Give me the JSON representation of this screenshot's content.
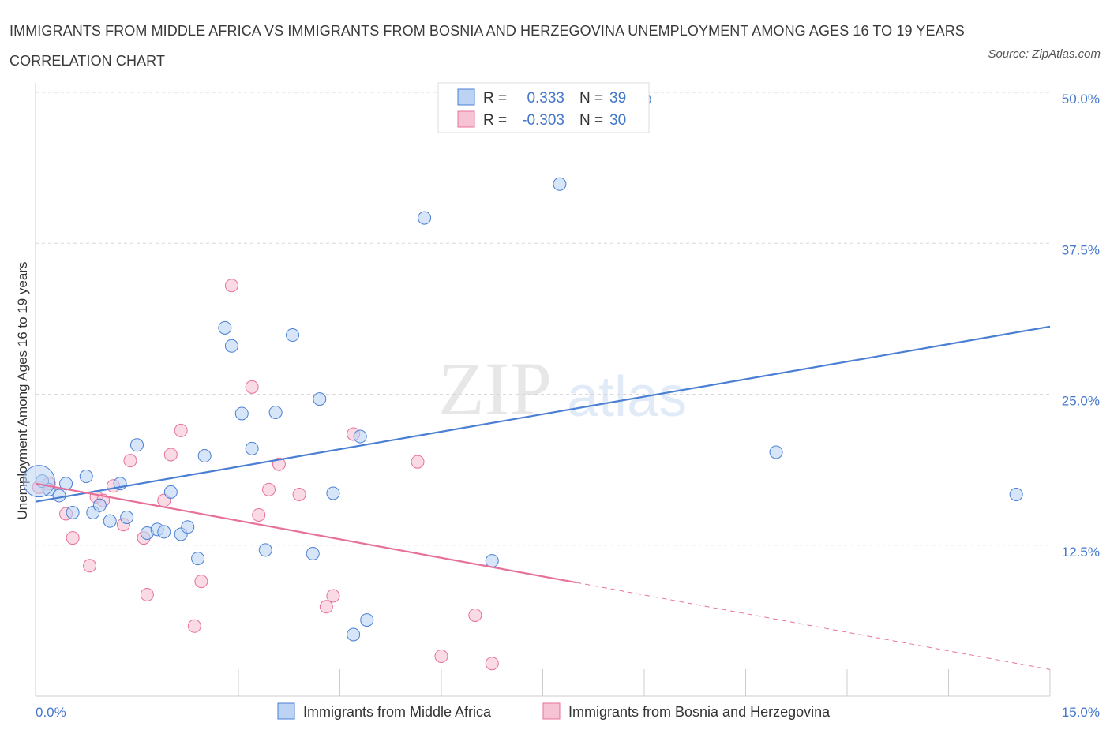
{
  "title": "IMMIGRANTS FROM MIDDLE AFRICA VS IMMIGRANTS FROM BOSNIA AND HERZEGOVINA UNEMPLOYMENT AMONG AGES 16 TO 19 YEARS CORRELATION CHART",
  "source": "Source: ZipAtlas.com",
  "watermark": {
    "zip": "ZIP",
    "atlas": "atlas"
  },
  "colors": {
    "blue": "#4a7fd4",
    "blue_fill": "#bcd3f3",
    "pink": "#e8719c",
    "pink_fill": "#f6c3d4",
    "tick_text": "#4477cc",
    "grid": "#d8d8d8"
  },
  "legend": {
    "rows": [
      {
        "r_label": "R =",
        "r_value": "0.333",
        "n_label": "N =",
        "n_value": "39"
      },
      {
        "r_label": "R =",
        "r_value": "-0.303",
        "n_label": "N =",
        "n_value": "30"
      }
    ]
  },
  "chart_data": {
    "type": "scatter",
    "ylabel": "Unemployment Among Ages 16 to 19 years",
    "x_tick_labels": [
      "0.0%",
      "15.0%"
    ],
    "y_tick_labels": [
      "12.5%",
      "25.0%",
      "37.5%",
      "50.0%"
    ],
    "xlim": [
      0,
      15
    ],
    "ylim": [
      0,
      50
    ],
    "grid": "horizontal dashed",
    "legend_position": "top-center",
    "series": [
      {
        "name": "Immigrants from Middle Africa",
        "color": "#4a7fd4",
        "trend": {
          "x0": 0,
          "y0": 16.1,
          "x1": 15,
          "y1": 30.6
        },
        "points": [
          [
            0.1,
            17.8
          ],
          [
            0.2,
            17.1
          ],
          [
            0.35,
            16.6
          ],
          [
            0.45,
            17.6
          ],
          [
            0.55,
            15.2
          ],
          [
            0.75,
            18.2
          ],
          [
            0.85,
            15.2
          ],
          [
            0.95,
            15.8
          ],
          [
            1.1,
            14.5
          ],
          [
            1.25,
            17.6
          ],
          [
            1.35,
            14.8
          ],
          [
            1.5,
            20.8
          ],
          [
            1.65,
            13.5
          ],
          [
            1.8,
            13.8
          ],
          [
            1.9,
            13.6
          ],
          [
            2.0,
            16.9
          ],
          [
            2.15,
            13.4
          ],
          [
            2.25,
            14.0
          ],
          [
            2.4,
            11.4
          ],
          [
            2.5,
            19.9
          ],
          [
            2.8,
            30.5
          ],
          [
            2.9,
            29.0
          ],
          [
            3.05,
            23.4
          ],
          [
            3.2,
            20.5
          ],
          [
            3.4,
            12.1
          ],
          [
            3.55,
            23.5
          ],
          [
            3.8,
            29.9
          ],
          [
            4.1,
            11.8
          ],
          [
            4.2,
            24.6
          ],
          [
            4.4,
            16.8
          ],
          [
            4.7,
            5.1
          ],
          [
            4.8,
            21.5
          ],
          [
            4.9,
            6.3
          ],
          [
            5.75,
            39.6
          ],
          [
            6.75,
            11.2
          ],
          [
            7.75,
            42.4
          ],
          [
            9.0,
            49.4
          ],
          [
            10.95,
            20.2
          ],
          [
            14.5,
            16.7
          ]
        ]
      },
      {
        "name": "Immigrants from Bosnia and Herzegovina",
        "color": "#e8719c",
        "trend": {
          "x0": 0,
          "y0": 17.6,
          "x1": 8.0,
          "y1": 9.4,
          "x_dash_end": 15,
          "y_dash_end": 2.2
        },
        "points": [
          [
            0.05,
            17.3
          ],
          [
            0.2,
            17.6
          ],
          [
            0.45,
            15.1
          ],
          [
            0.55,
            13.1
          ],
          [
            0.8,
            10.8
          ],
          [
            0.9,
            16.5
          ],
          [
            1.0,
            16.2
          ],
          [
            1.15,
            17.4
          ],
          [
            1.3,
            14.2
          ],
          [
            1.4,
            19.5
          ],
          [
            1.6,
            13.1
          ],
          [
            1.65,
            8.4
          ],
          [
            1.9,
            16.2
          ],
          [
            2.0,
            20.0
          ],
          [
            2.15,
            22.0
          ],
          [
            2.35,
            5.8
          ],
          [
            2.45,
            9.5
          ],
          [
            2.9,
            34.0
          ],
          [
            3.2,
            25.6
          ],
          [
            3.3,
            15.0
          ],
          [
            3.45,
            17.1
          ],
          [
            3.6,
            19.2
          ],
          [
            3.9,
            16.7
          ],
          [
            4.3,
            7.4
          ],
          [
            4.4,
            8.3
          ],
          [
            4.7,
            21.7
          ],
          [
            5.65,
            19.4
          ],
          [
            6.0,
            3.3
          ],
          [
            6.5,
            6.7
          ],
          [
            6.75,
            2.7
          ]
        ]
      }
    ]
  }
}
